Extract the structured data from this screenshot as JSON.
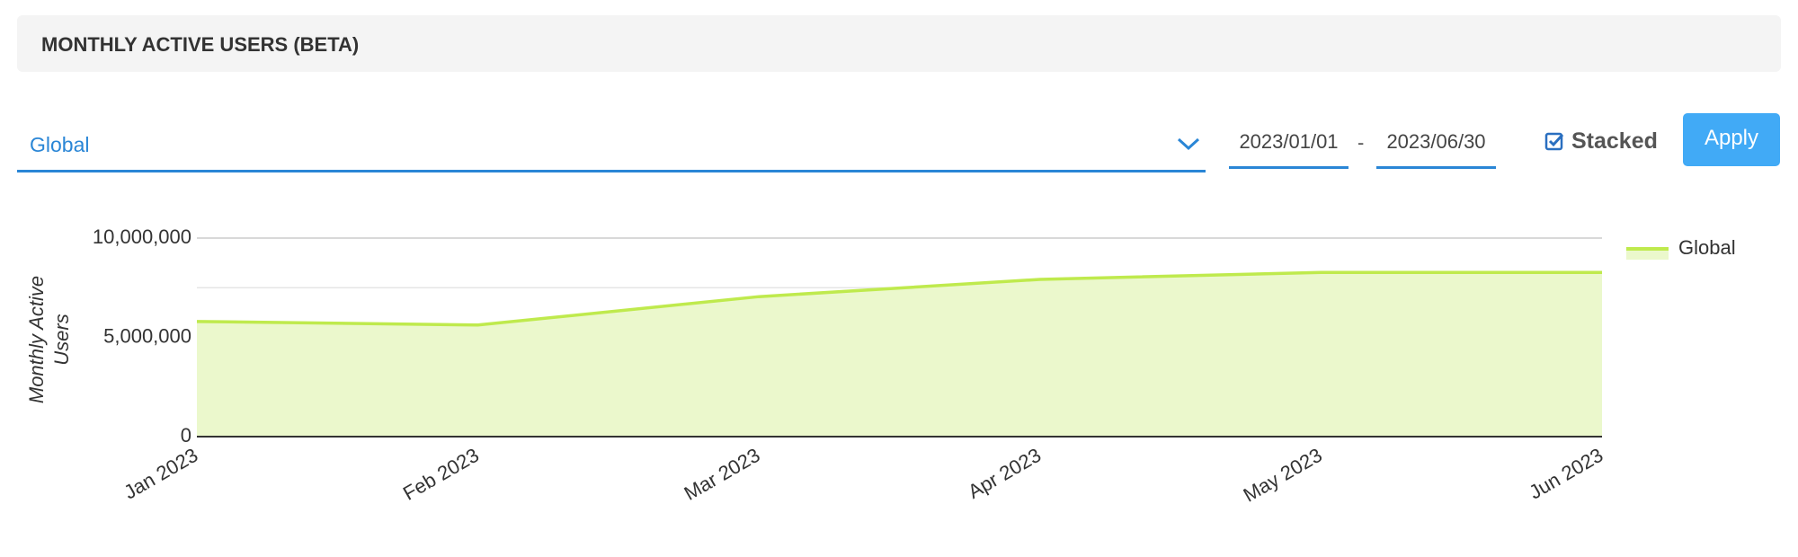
{
  "header": {
    "title": "MONTHLY ACTIVE USERS (BETA)"
  },
  "controls": {
    "region": "Global",
    "start_date": "2023/01/01",
    "separator": "-",
    "end_date": "2023/06/30",
    "stacked_label": "Stacked",
    "stacked": true,
    "apply_label": "Apply"
  },
  "chart_data": {
    "type": "area",
    "ylabel": "Monthly Active Users",
    "categories": [
      "Jan 2023",
      "Feb 2023",
      "Mar 2023",
      "Apr 2023",
      "May 2023",
      "Jun 2023"
    ],
    "series": [
      {
        "name": "Global",
        "color": "#bfea4d",
        "fill": "#ebf8cc",
        "values": [
          5800000,
          5620000,
          7050000,
          7920000,
          8270000,
          8270000
        ]
      }
    ],
    "ylim": [
      0,
      10000000
    ],
    "yticks": [
      0,
      {
        "value": 5000000,
        "label": "5,000,000"
      },
      {
        "value": 10000000,
        "label": "10,000,000"
      }
    ],
    "minor_grid": [
      2500000,
      7500000
    ],
    "grid": true,
    "legend": "right"
  }
}
